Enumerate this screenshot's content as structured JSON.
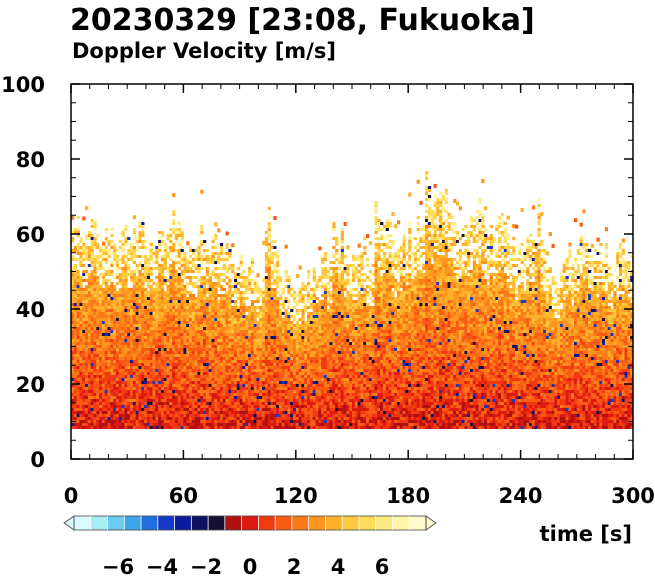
{
  "title": "20230329 [23:08, Fukuoka]",
  "subtitle": "Doppler Velocity [m/s]",
  "chart_data": {
    "type": "heatmap",
    "title": "20230329 [23:08, Fukuoka]",
    "subtitle": "Doppler Velocity [m/s]",
    "xlabel": "time [s]",
    "ylabel": "",
    "xlim": [
      0,
      300
    ],
    "ylim": [
      0,
      100
    ],
    "x_ticks": [
      0,
      60,
      120,
      180,
      240,
      300
    ],
    "y_ticks": [
      0,
      20,
      40,
      60,
      80,
      100
    ],
    "x_tick_labels": [
      "0",
      "60",
      "120",
      "180",
      "240",
      "300"
    ],
    "y_tick_labels": [
      "0",
      "20",
      "40",
      "60",
      "80",
      "100"
    ],
    "data_bottom": 8,
    "echo_top_typical": [
      50,
      70
    ],
    "echo_top_max": 77,
    "dominant_velocity_range": [
      0,
      3
    ],
    "colorbar": {
      "range": [
        -8,
        8
      ],
      "ticks": [
        -6,
        -4,
        -2,
        0,
        2,
        4,
        6
      ],
      "tick_labels": [
        "−6",
        "−4",
        "−2",
        "0",
        "2",
        "4",
        "6"
      ],
      "colors_negative": [
        "#d8fbff",
        "#a8ecf6",
        "#6ccbef",
        "#3ea4ec",
        "#1f6fe3",
        "#1438c8",
        "#0d1b9e",
        "#101060",
        "#15102f"
      ],
      "colors_positive": [
        "#b01010",
        "#dd1a12",
        "#f23a12",
        "#f95a14",
        "#fb7a18",
        "#fc961e",
        "#fdb12a",
        "#fdc93e",
        "#fddc5a",
        "#feea80",
        "#fff4aa",
        "#fffad0"
      ]
    }
  }
}
